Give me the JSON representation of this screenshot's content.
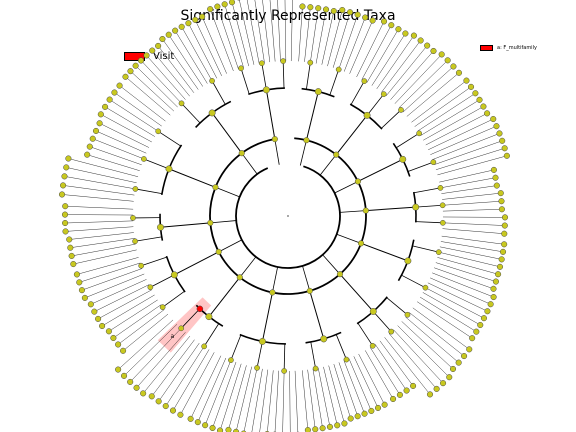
{
  "title": "Significantly Represented Taxa",
  "legend": {
    "visit": {
      "label": "Visit",
      "color": "#ff0000"
    },
    "family": {
      "label": "a: F_multifamily",
      "color": "#ff0000"
    }
  },
  "highlight": {
    "clade": "a",
    "color": "#ff0000"
  },
  "node_color": "#c8c820",
  "clades": [
    {
      "tips": 10
    },
    {
      "tips": 12
    },
    {
      "tips": 11
    },
    {
      "tips": 9
    },
    {
      "tips": 13
    },
    {
      "tips": 12
    },
    {
      "tips": 11
    },
    {
      "tips": 14
    },
    {
      "tips": 10
    },
    {
      "tips": 12
    },
    {
      "tips": 8
    },
    {
      "tips": 16
    },
    {
      "tips": 13
    },
    {
      "tips": 11
    }
  ]
}
